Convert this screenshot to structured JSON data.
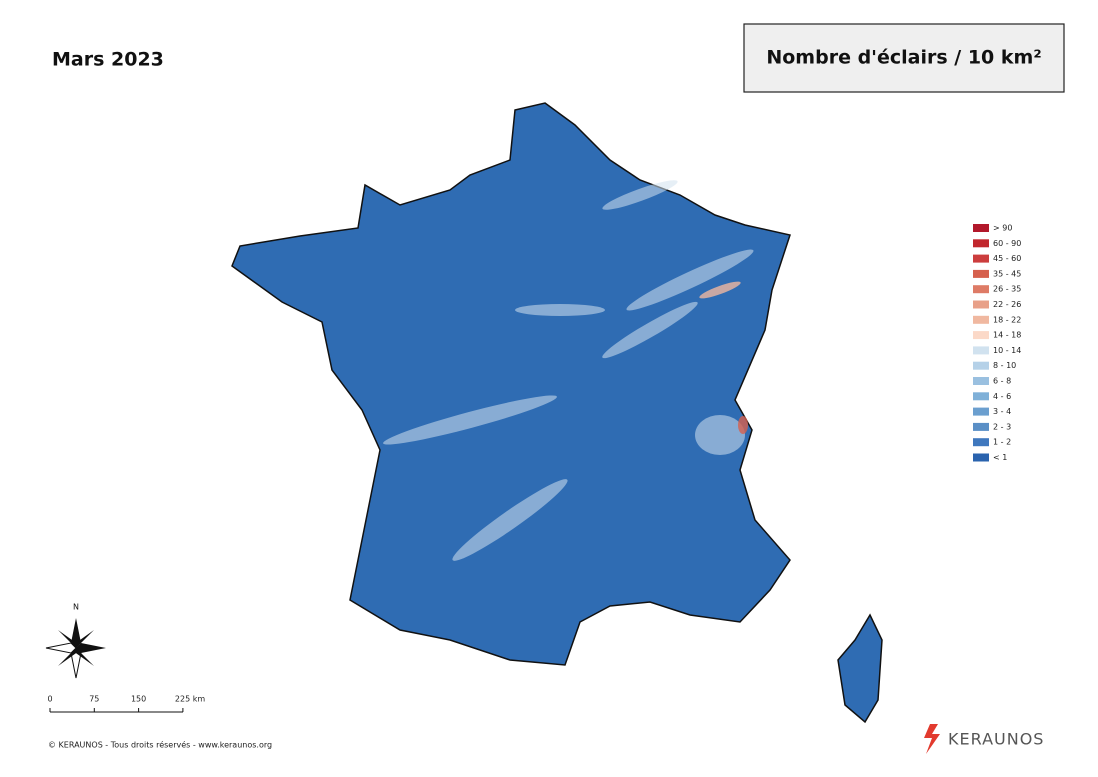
{
  "header": {
    "title": "Mars 2023",
    "legend_title": "Nombre d'éclairs / 10 km²"
  },
  "legend": {
    "items": [
      {
        "label": "> 90",
        "color": "#b2182b"
      },
      {
        "label": "60 - 90",
        "color": "#c1272d"
      },
      {
        "label": "45 - 60",
        "color": "#cc3d3d"
      },
      {
        "label": "35 - 45",
        "color": "#d6604d"
      },
      {
        "label": "26 - 35",
        "color": "#de7b66"
      },
      {
        "label": "22 - 26",
        "color": "#e8a088"
      },
      {
        "label": "18 - 22",
        "color": "#f0b8a0"
      },
      {
        "label": "14 - 18",
        "color": "#fbd9c8"
      },
      {
        "label": "10 - 14",
        "color": "#d1e2ef"
      },
      {
        "label": "8 - 10",
        "color": "#b5d1e8"
      },
      {
        "label": "6 - 8",
        "color": "#9ac0e0"
      },
      {
        "label": "4 - 6",
        "color": "#7fb0d8"
      },
      {
        "label": "3 - 4",
        "color": "#6b9fcf"
      },
      {
        "label": "2 - 3",
        "color": "#5a8fc6"
      },
      {
        "label": "1 - 2",
        "color": "#3f78be"
      },
      {
        "label": "< 1",
        "color": "#2a63ae"
      }
    ]
  },
  "compass": {
    "label": "N"
  },
  "scale": {
    "labels": [
      "0",
      "75",
      "150",
      "225 km"
    ]
  },
  "footer": {
    "copyright": "© KERAUNOS - Tous droits réservés - www.keraunos.org",
    "brand": "KERAUNOS"
  }
}
